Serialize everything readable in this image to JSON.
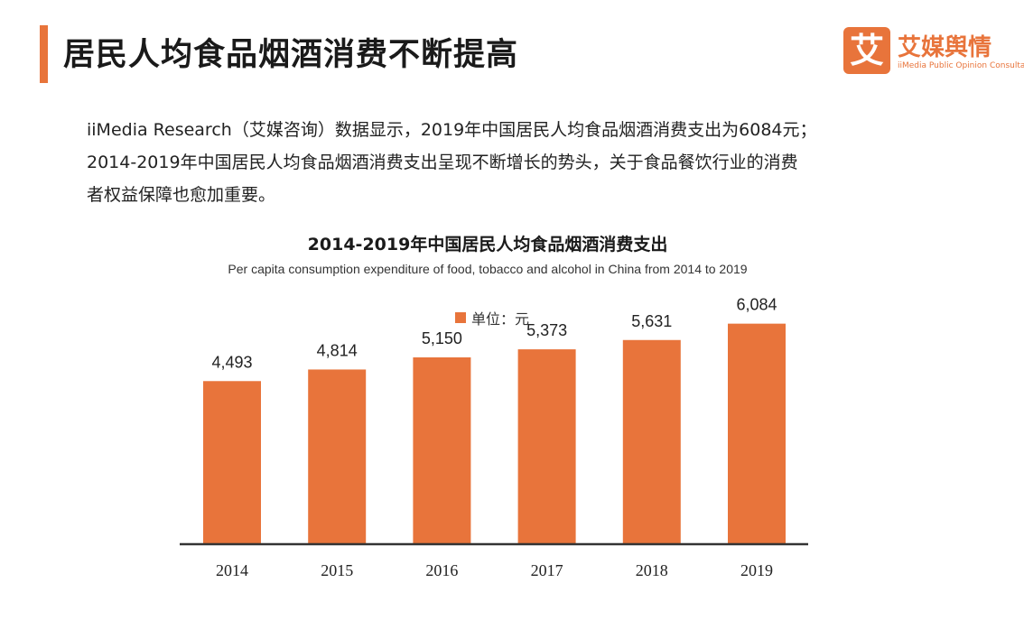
{
  "header": {
    "title": "居民人均食品烟酒消费不断提高",
    "logo": {
      "symbol": "艾",
      "name": "艾媒舆情",
      "subtitle": "iiMedia Public Opinion Consultation"
    }
  },
  "intro": {
    "lines": [
      "iiMedia Research（艾媒咨询）数据显示，2019年中国居民人均食品烟酒消费支出为6084元；",
      "2014-2019年中国居民人均食品烟酒消费支出呈现不断增长的势头，关于食品餐饮行业的消费",
      "者权益保障也愈加重要。"
    ]
  },
  "colors": {
    "accent": "#e8743b",
    "bar": "#e8743b",
    "axis": "#333333"
  },
  "chart_data": {
    "type": "bar",
    "title": "2014-2019年中国居民人均食品烟酒消费支出",
    "subtitle": "Per capita consumption expenditure of food, tobacco and alcohol in China from 2014 to 2019",
    "categories": [
      "2014",
      "2015",
      "2016",
      "2017",
      "2018",
      "2019"
    ],
    "series": [
      {
        "name": "单位：元",
        "values": [
          4493,
          4814,
          5150,
          5373,
          5631,
          6084
        ]
      }
    ],
    "value_labels": [
      "4,493",
      "4,814",
      "5,150",
      "5,373",
      "5,631",
      "6,084"
    ],
    "legend_position": "top-center",
    "grid": false,
    "ylim": [
      0,
      7000
    ]
  }
}
